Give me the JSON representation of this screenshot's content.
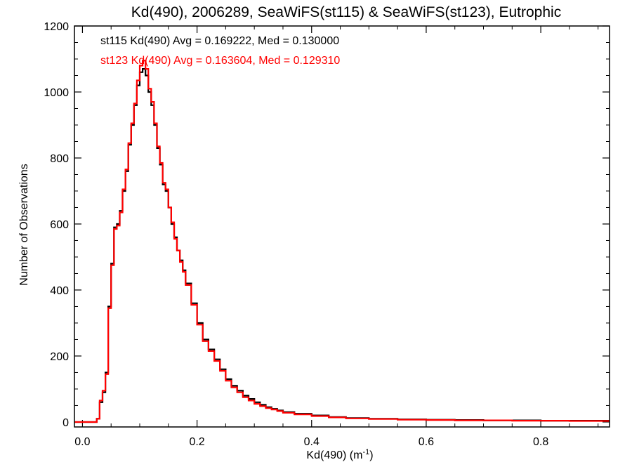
{
  "chart_data": {
    "type": "line",
    "title": "Kd(490), 2006289, SeaWiFS(st115) & SeaWiFS(st123), Eutrophic",
    "xlabel": "Kd(490) (m",
    "xlabel_sup": "-1",
    "xlabel_close": ")",
    "ylabel": "Number of Observations",
    "xlim": [
      -0.014,
      0.92
    ],
    "ylim": [
      -15,
      1200
    ],
    "xticks": [
      0.0,
      0.2,
      0.4,
      0.6,
      0.8
    ],
    "xtick_labels": [
      "0.0",
      "0.2",
      "0.4",
      "0.6",
      "0.8"
    ],
    "yticks": [
      0,
      200,
      400,
      600,
      800,
      1000,
      1200
    ],
    "ytick_labels": [
      "0",
      "200",
      "400",
      "600",
      "800",
      "1000",
      "1200"
    ],
    "grid": false,
    "step": "histogram",
    "x": [
      -0.014,
      0.0,
      0.02,
      0.025,
      0.03,
      0.035,
      0.04,
      0.045,
      0.05,
      0.055,
      0.06,
      0.065,
      0.07,
      0.075,
      0.08,
      0.085,
      0.09,
      0.095,
      0.1,
      0.105,
      0.11,
      0.115,
      0.12,
      0.125,
      0.13,
      0.135,
      0.14,
      0.145,
      0.15,
      0.155,
      0.16,
      0.165,
      0.17,
      0.175,
      0.18,
      0.19,
      0.2,
      0.21,
      0.22,
      0.23,
      0.24,
      0.25,
      0.26,
      0.27,
      0.28,
      0.29,
      0.3,
      0.31,
      0.32,
      0.33,
      0.34,
      0.35,
      0.37,
      0.4,
      0.43,
      0.46,
      0.5,
      0.55,
      0.6,
      0.65,
      0.7,
      0.75,
      0.8,
      0.85,
      0.92
    ],
    "series": [
      {
        "name": "st115",
        "color": "#000000",
        "values": [
          0,
          0,
          0,
          10,
          60,
          90,
          150,
          350,
          480,
          590,
          600,
          640,
          700,
          760,
          840,
          900,
          960,
          1020,
          1060,
          1070,
          1050,
          1000,
          960,
          900,
          830,
          780,
          720,
          700,
          650,
          600,
          560,
          520,
          490,
          460,
          420,
          360,
          300,
          250,
          220,
          190,
          160,
          130,
          110,
          95,
          80,
          70,
          60,
          52,
          45,
          40,
          35,
          30,
          25,
          20,
          15,
          12,
          10,
          8,
          7,
          6,
          5,
          5,
          4,
          4,
          3
        ]
      },
      {
        "name": "st123",
        "color": "#ff0000",
        "values": [
          0,
          0,
          0,
          10,
          65,
          95,
          145,
          345,
          475,
          585,
          595,
          635,
          705,
          765,
          845,
          905,
          965,
          1035,
          1080,
          1095,
          1070,
          1010,
          970,
          905,
          835,
          785,
          725,
          705,
          650,
          605,
          555,
          520,
          485,
          455,
          415,
          355,
          295,
          245,
          215,
          185,
          155,
          125,
          105,
          90,
          75,
          65,
          55,
          48,
          42,
          38,
          33,
          28,
          23,
          18,
          14,
          11,
          9,
          7,
          6,
          5,
          5,
          4,
          4,
          3,
          3
        ]
      }
    ],
    "annotations": [
      {
        "text": "st115 Kd(490) Avg = 0.169222, Med = 0.130000",
        "color": "#000000"
      },
      {
        "text": "st123 Kd(490) Avg = 0.163604, Med = 0.129310",
        "color": "#ff0000"
      }
    ]
  }
}
